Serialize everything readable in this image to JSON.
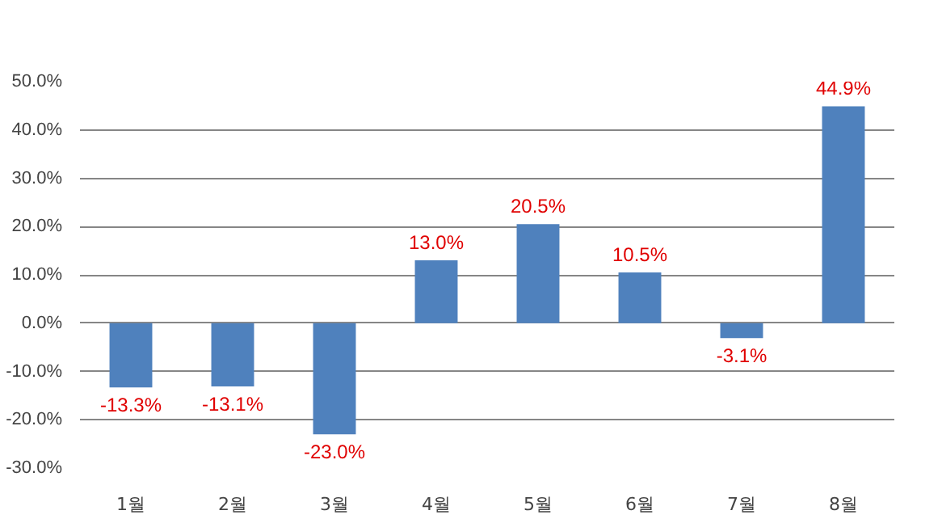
{
  "chart_data": {
    "type": "bar",
    "categories": [
      "1월",
      "2월",
      "3월",
      "4월",
      "5월",
      "6월",
      "7월",
      "8월"
    ],
    "values": [
      -13.3,
      -13.1,
      -23.0,
      13.0,
      20.5,
      10.5,
      -3.1,
      44.9
    ],
    "value_labels": [
      "-13.3%",
      "-13.1%",
      "-23.0%",
      "13.0%",
      "20.5%",
      "10.5%",
      "-3.1%",
      "44.9%"
    ],
    "color": "#4f81bd",
    "ylim": [
      -30,
      50
    ],
    "yticks": [
      {
        "value": -30,
        "label": "-30.0%"
      },
      {
        "value": -20,
        "label": "-20.0%"
      },
      {
        "value": -10,
        "label": "-10.0%"
      },
      {
        "value": 0,
        "label": "0.0%"
      },
      {
        "value": 10,
        "label": "10.0%"
      },
      {
        "value": 20,
        "label": "20.0%"
      },
      {
        "value": 30,
        "label": "30.0%"
      },
      {
        "value": 40,
        "label": "40.0%"
      },
      {
        "value": 50,
        "label": "50.0%"
      }
    ],
    "grid": "y"
  }
}
